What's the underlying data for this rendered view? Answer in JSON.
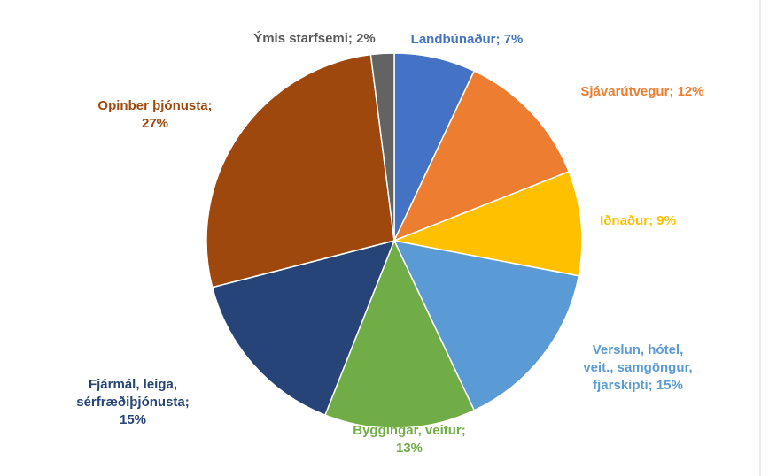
{
  "chart_data": {
    "type": "pie",
    "values": [
      7,
      12,
      9,
      15,
      13,
      15,
      27,
      2
    ],
    "value_labels": [
      "Landbúnaður; 7%",
      "Sjávarútvegur; 12%",
      "Iðnaður; 9%",
      "Verslun, hótel,\nveit., samgöngur,\nfjarskipti; 15%",
      "Byggingar, veitur;\n13%",
      "Fjármál, leiga,\nsérfræðiþjónusta;\n15%",
      "Opinber þjónusta;\n27%",
      "Ýmis starfsemi; 2%"
    ],
    "colors": [
      "#4472c4",
      "#ed7d31",
      "#ffc000",
      "#5b9bd5",
      "#70ad47",
      "#264478",
      "#9e480e",
      "#636363"
    ],
    "label_colors": [
      "#4472c4",
      "#ed7d31",
      "#ffc000",
      "#5b9bd5",
      "#70ad47",
      "#264478",
      "#9e480e",
      "#595959"
    ]
  }
}
